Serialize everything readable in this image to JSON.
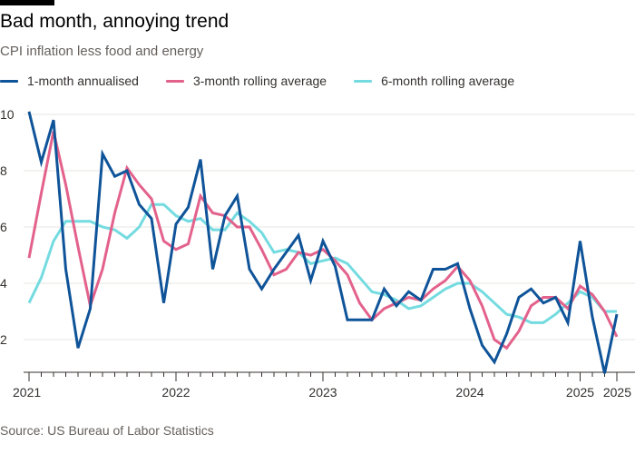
{
  "header": {
    "title": "Bad month, annoying trend",
    "subtitle": "CPI inflation less food and energy"
  },
  "source": "Source: US Bureau of Labor Statistics",
  "colors": {
    "series_1": "#0f5499",
    "series_2": "#e3628c",
    "series_3": "#74dbe0",
    "grid": "#e6e4e1",
    "axis": "#33302e"
  },
  "chart_data": {
    "type": "line",
    "x_ticks": [
      {
        "label": "2021",
        "month": 0
      },
      {
        "label": "2022",
        "month": 12
      },
      {
        "label": "2023",
        "month": 24
      },
      {
        "label": "2024",
        "month": 36
      },
      {
        "label": "2025",
        "month": 45
      },
      {
        "label": "2025",
        "month": 48
      }
    ],
    "y_ticks": [
      2,
      4,
      6,
      8,
      10
    ],
    "ylim": [
      0.5,
      10
    ],
    "xlim": [
      0,
      48
    ],
    "grid": "horizontal",
    "legend_position": "top",
    "series": [
      {
        "name": "1-month annualised",
        "color_key": "series_1",
        "values": [
          10.1,
          8.3,
          9.8,
          4.5,
          1.7,
          3.1,
          8.6,
          7.8,
          8.0,
          6.8,
          6.3,
          3.3,
          6.1,
          6.7,
          8.4,
          4.5,
          6.4,
          7.1,
          4.5,
          3.8,
          4.5,
          5.1,
          5.7,
          4.1,
          5.5,
          4.6,
          2.7,
          2.7,
          2.7,
          3.8,
          3.2,
          3.7,
          3.4,
          4.5,
          4.5,
          4.7,
          3.1,
          1.8,
          1.2,
          2.2,
          3.5,
          3.8,
          3.3,
          3.5,
          2.6,
          5.5,
          2.8,
          0.8,
          2.9
        ]
      },
      {
        "name": "3-month rolling average",
        "color_key": "series_2",
        "values": [
          4.9,
          7.2,
          9.4,
          7.5,
          5.3,
          3.2,
          4.5,
          6.5,
          8.1,
          7.5,
          7.0,
          5.5,
          5.2,
          5.4,
          7.1,
          6.5,
          6.4,
          6.0,
          6.0,
          5.2,
          4.3,
          4.5,
          5.1,
          5.0,
          5.2,
          4.8,
          4.3,
          3.3,
          2.7,
          3.1,
          3.3,
          3.5,
          3.4,
          3.8,
          4.1,
          4.6,
          4.1,
          3.2,
          2.0,
          1.7,
          2.3,
          3.2,
          3.5,
          3.5,
          3.1,
          3.9,
          3.6,
          3.0,
          2.1
        ]
      },
      {
        "name": "6-month rolling average",
        "color_key": "series_3",
        "values": [
          3.3,
          4.2,
          5.5,
          6.2,
          6.2,
          6.2,
          6.0,
          5.9,
          5.6,
          6.0,
          6.8,
          6.8,
          6.4,
          6.2,
          6.3,
          5.9,
          5.9,
          6.5,
          6.2,
          5.8,
          5.1,
          5.2,
          5.1,
          4.7,
          4.8,
          4.9,
          4.7,
          4.2,
          3.7,
          3.6,
          3.4,
          3.1,
          3.2,
          3.5,
          3.8,
          4.0,
          4.0,
          3.7,
          3.3,
          2.9,
          2.8,
          2.6,
          2.6,
          2.9,
          3.3,
          3.7,
          3.5,
          3.0,
          3.0
        ]
      }
    ]
  }
}
